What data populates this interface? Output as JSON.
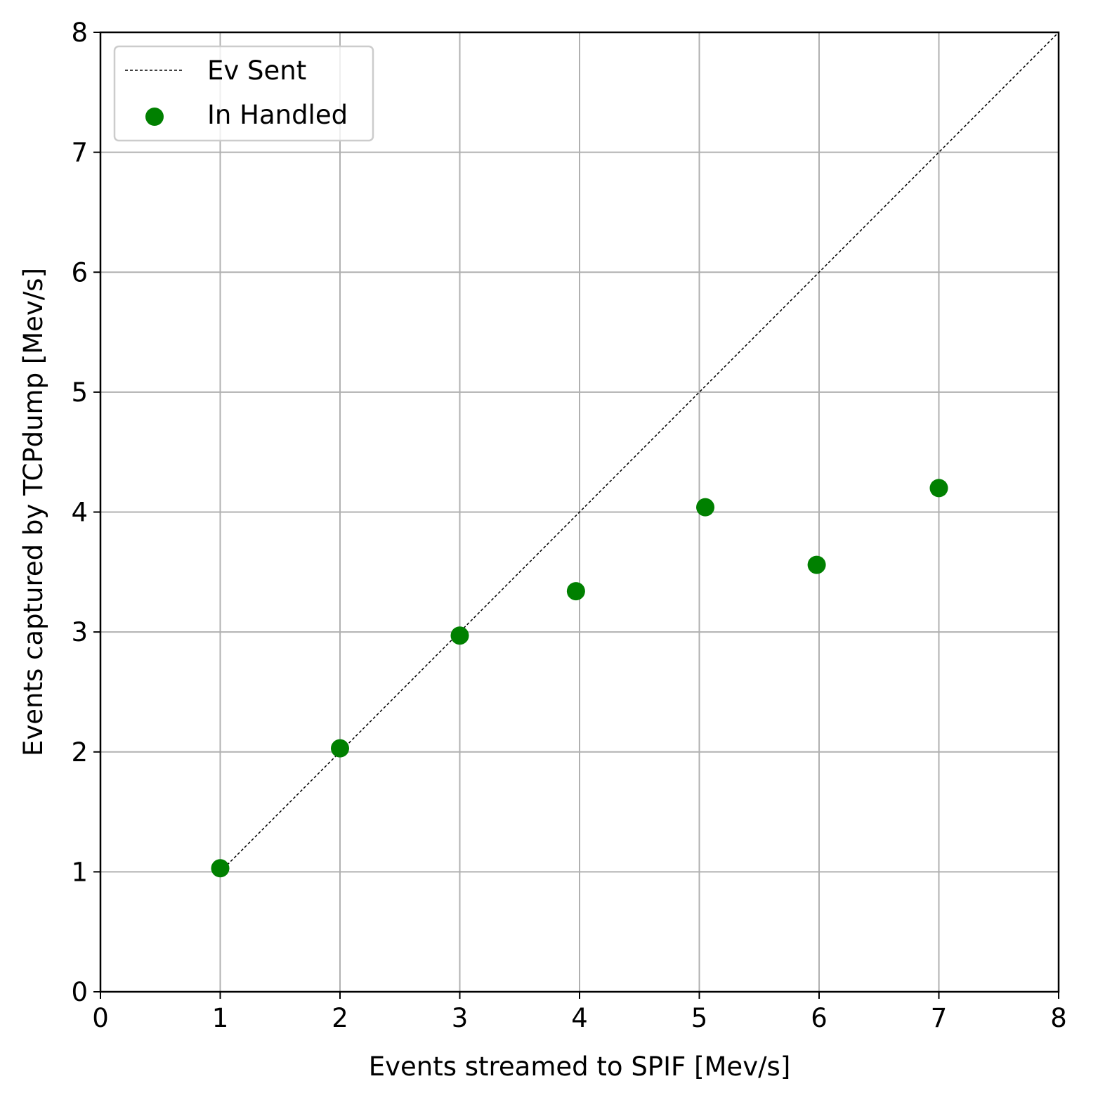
{
  "chart_data": {
    "type": "scatter",
    "xlabel": "Events streamed to SPIF [Mev/s]",
    "ylabel": "Events captured by TCPdump [Mev/s]",
    "xlim": [
      0,
      8
    ],
    "ylim": [
      0,
      8
    ],
    "xticks": [
      "0",
      "1",
      "2",
      "3",
      "4",
      "5",
      "6",
      "7",
      "8"
    ],
    "yticks": [
      "0",
      "1",
      "2",
      "3",
      "4",
      "5",
      "6",
      "7",
      "8"
    ],
    "grid": true,
    "legend_position": "top-left",
    "series": [
      {
        "name": "Ev Sent",
        "kind": "dashed-line",
        "color": "#000000",
        "x": [
          1,
          8
        ],
        "y": [
          1,
          8
        ]
      },
      {
        "name": "In Handled",
        "kind": "scatter",
        "color": "#008000",
        "x": [
          1.0,
          2.0,
          3.0,
          3.97,
          5.05,
          5.98,
          7.0
        ],
        "y": [
          1.03,
          2.03,
          2.97,
          3.34,
          4.04,
          3.56,
          4.2
        ]
      }
    ]
  }
}
